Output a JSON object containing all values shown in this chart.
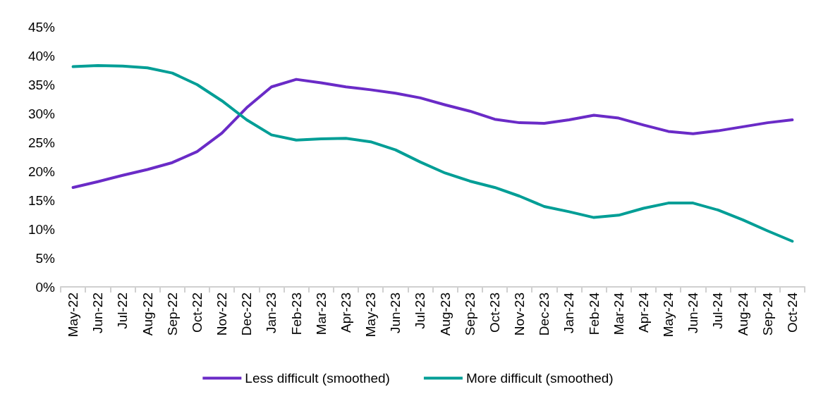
{
  "chart_data": {
    "type": "line",
    "categories": [
      "May-22",
      "Jun-22",
      "Jul-22",
      "Aug-22",
      "Sep-22",
      "Oct-22",
      "Nov-22",
      "Dec-22",
      "Jan-23",
      "Feb-23",
      "Mar-23",
      "Apr-23",
      "May-23",
      "Jun-23",
      "Jul-23",
      "Aug-23",
      "Sep-23",
      "Oct-23",
      "Nov-23",
      "Dec-23",
      "Jan-24",
      "Feb-24",
      "Mar-24",
      "Apr-24",
      "May-24",
      "Jun-24",
      "Jul-24",
      "Aug-24",
      "Sep-24",
      "Oct-24"
    ],
    "series": [
      {
        "name": "Less difficult (smoothed)",
        "color": "#6a2bc7",
        "values": [
          17.2,
          18.2,
          19.3,
          20.3,
          21.5,
          23.4,
          26.6,
          31.0,
          34.6,
          35.9,
          35.3,
          34.6,
          34.1,
          33.5,
          32.7,
          31.5,
          30.4,
          29.0,
          28.4,
          28.3,
          28.9,
          29.7,
          29.2,
          28.0,
          26.9,
          26.5,
          27.0,
          27.7,
          28.4,
          28.9
        ]
      },
      {
        "name": "More difficult (smoothed)",
        "color": "#009e96",
        "values": [
          38.1,
          38.3,
          38.2,
          37.9,
          37.0,
          35.0,
          32.2,
          28.9,
          26.3,
          25.4,
          25.6,
          25.7,
          25.1,
          23.7,
          21.6,
          19.7,
          18.3,
          17.2,
          15.7,
          13.9,
          13.0,
          12.0,
          12.4,
          13.6,
          14.5,
          14.5,
          13.3,
          11.6,
          9.7,
          7.9
        ]
      }
    ],
    "ylim": [
      0,
      45
    ],
    "yticks": [
      {
        "value": 0,
        "label": "0%"
      },
      {
        "value": 5,
        "label": "5%"
      },
      {
        "value": 10,
        "label": "10%"
      },
      {
        "value": 15,
        "label": "15%"
      },
      {
        "value": 20,
        "label": "20%"
      },
      {
        "value": 25,
        "label": "25%"
      },
      {
        "value": 30,
        "label": "30%"
      },
      {
        "value": 35,
        "label": "35%"
      },
      {
        "value": 40,
        "label": "40%"
      },
      {
        "value": 45,
        "label": "45%"
      }
    ],
    "grid": false,
    "legend": "bottom",
    "marker": "none",
    "line_style": "solid"
  }
}
